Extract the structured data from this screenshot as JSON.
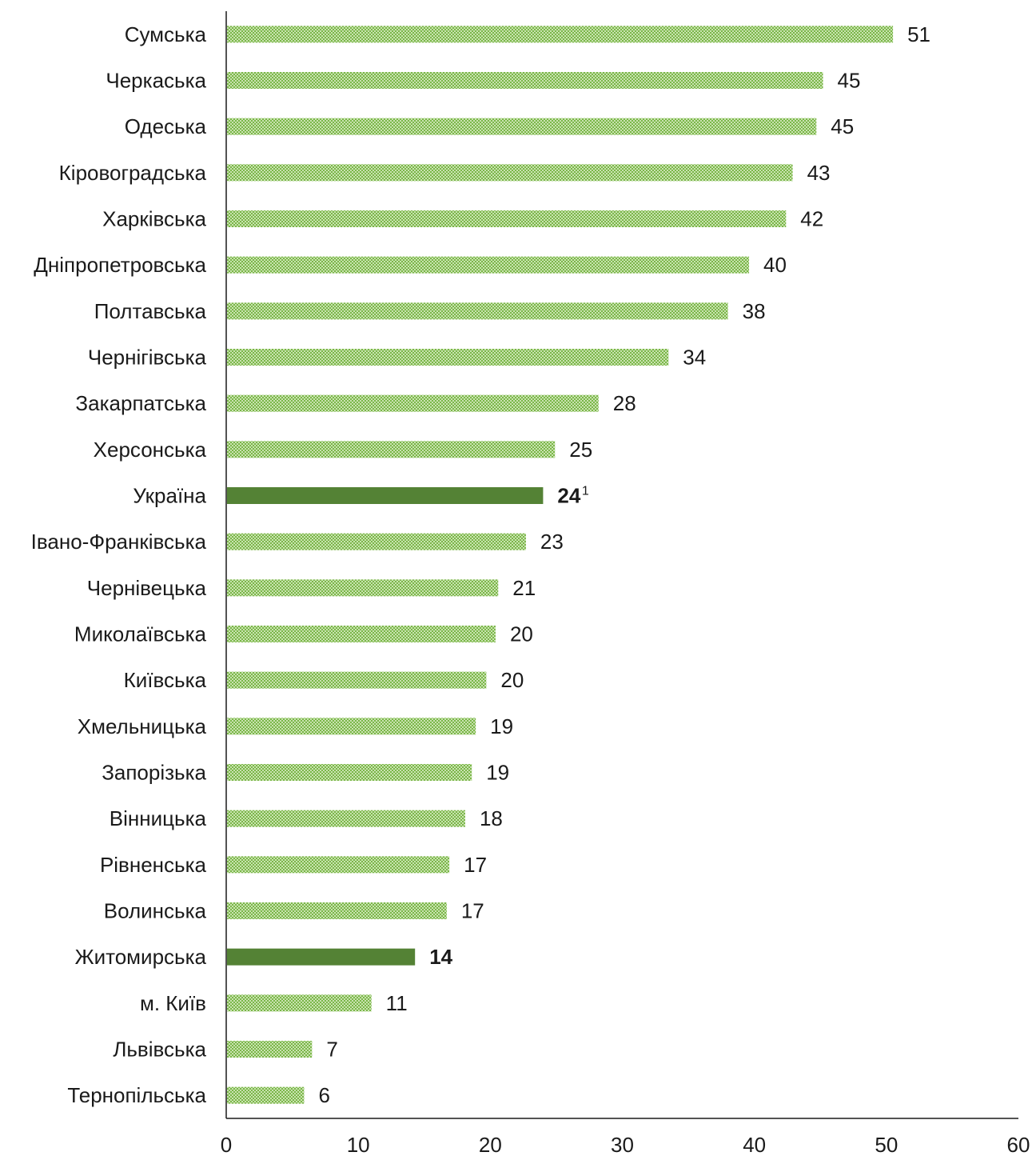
{
  "chart_data": {
    "type": "bar",
    "orientation": "horizontal",
    "categories": [
      "Сумська",
      "Черкаська",
      "Одеська",
      "Кіровоградська",
      "Харківська",
      "Дніпропетровська",
      "Полтавська",
      "Чернігівська",
      "Закарпатська",
      "Херсонська",
      "Україна",
      "Івано-Франківська",
      "Чернівецька",
      "Миколаївська",
      "Київська",
      "Хмельницька",
      "Запорізька",
      "Вінницька",
      "Рівненська",
      "Волинська",
      "Житомирська",
      "м. Київ",
      "Львівська",
      "Тернопільська"
    ],
    "values": [
      50.5,
      45.2,
      44.7,
      42.9,
      42.4,
      39.6,
      38.0,
      33.5,
      28.2,
      24.9,
      24,
      22.7,
      20.6,
      20.4,
      19.7,
      18.9,
      18.6,
      18.1,
      16.9,
      16.7,
      14.3,
      11.0,
      6.5,
      5.9
    ],
    "value_labels": [
      "51",
      "45",
      "45",
      "43",
      "42",
      "40",
      "38",
      "34",
      "28",
      "25",
      "24",
      "23",
      "21",
      "20",
      "20",
      "19",
      "19",
      "18",
      "17",
      "17",
      "14",
      "11",
      "7",
      "6"
    ],
    "highlighted": [
      "Україна",
      "Житомирська"
    ],
    "footnote_marker": {
      "category": "Україна",
      "text": "1"
    },
    "xlim": [
      0,
      60
    ],
    "xticks": [
      "0",
      "10",
      "20",
      "30",
      "40",
      "50",
      "60"
    ],
    "grid": false,
    "colors": {
      "bar_pattern_main": "#7ab648",
      "bar_pattern_light": "#c9e3b0",
      "highlight": "#548235",
      "text": "#1a1a1a",
      "axis": "#1a1a1a"
    }
  }
}
